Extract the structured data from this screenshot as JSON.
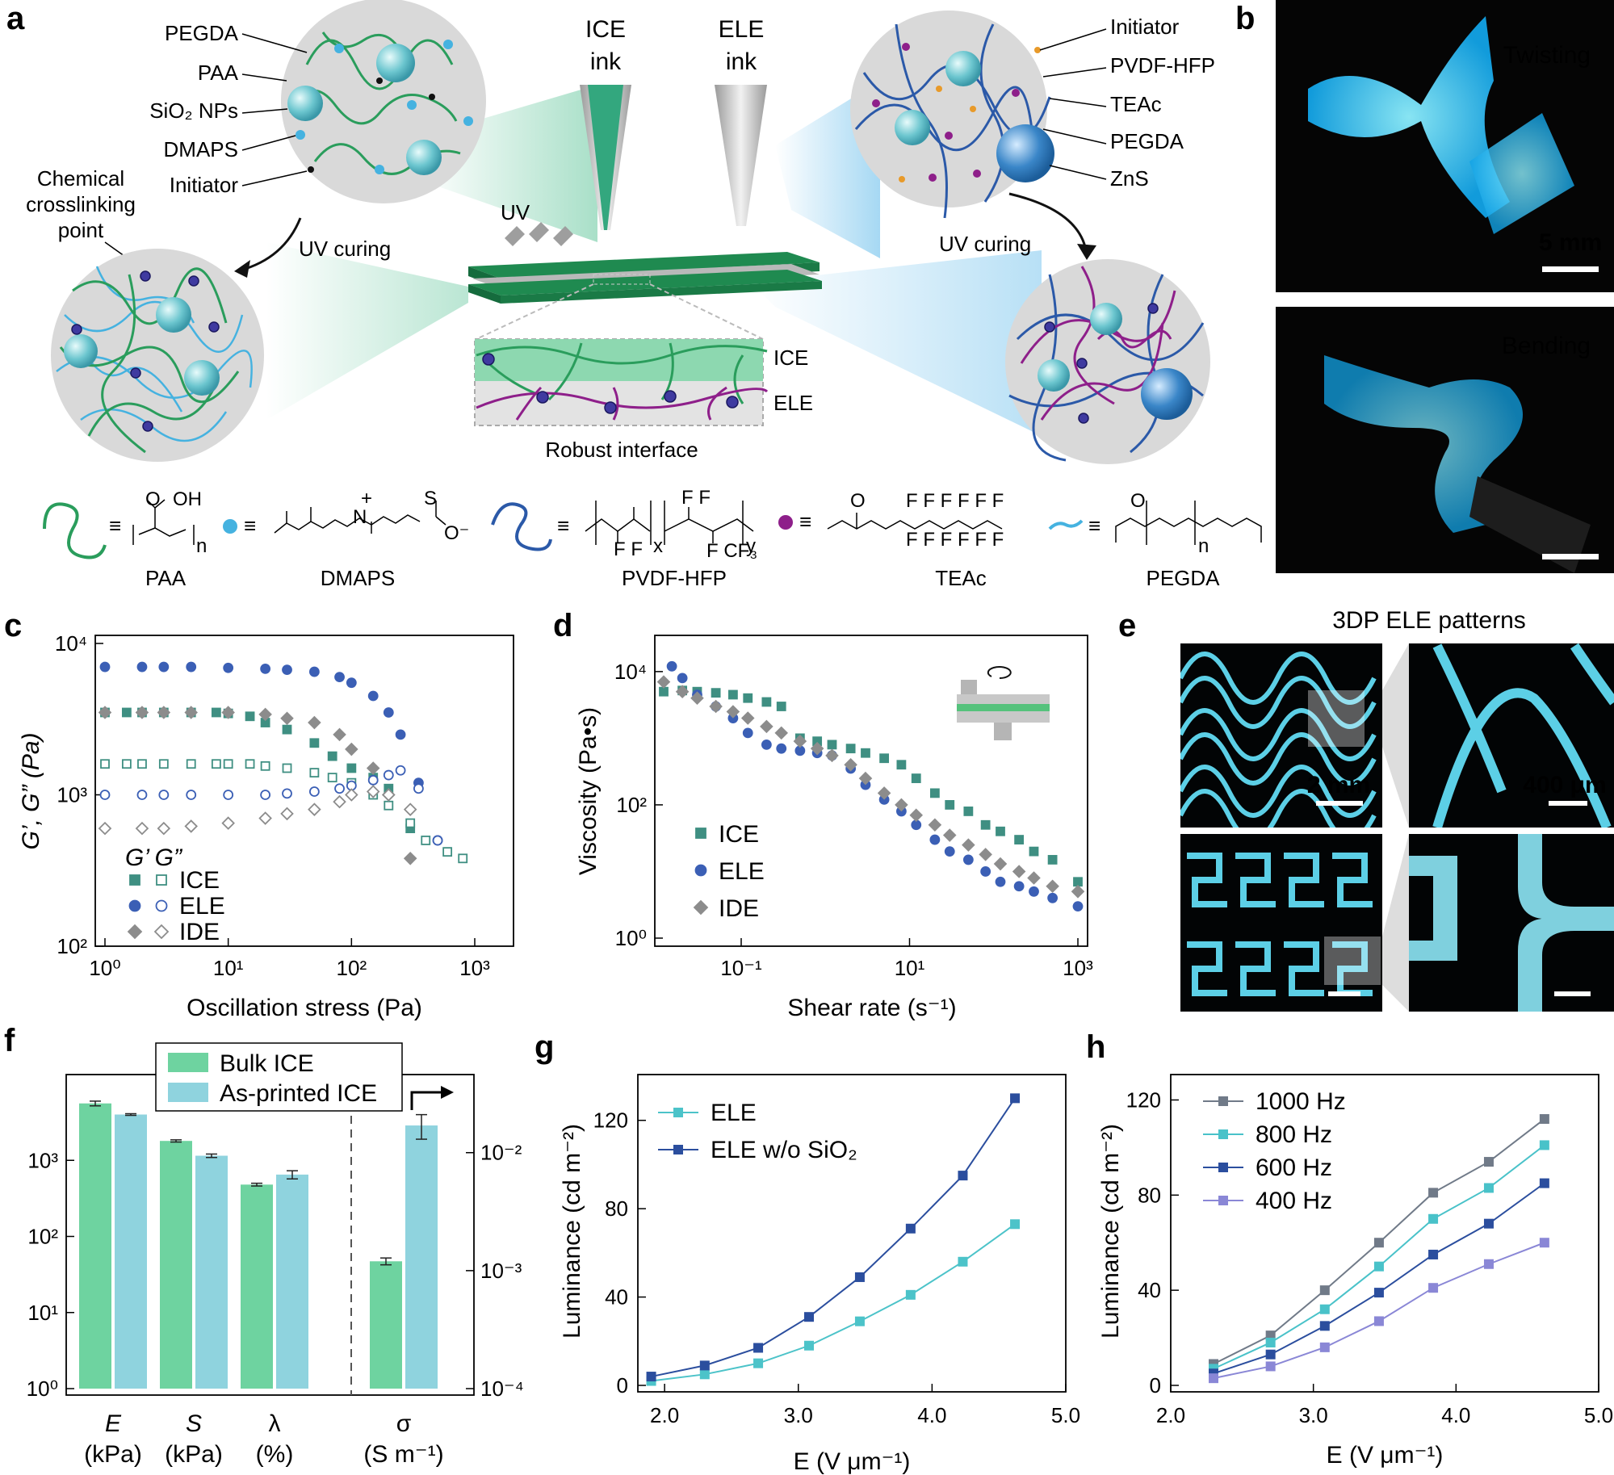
{
  "panels": [
    "a",
    "b",
    "c",
    "d",
    "e",
    "f",
    "g",
    "h"
  ],
  "a": {
    "ice_ink": [
      "ICE",
      "ink"
    ],
    "ele_ink": [
      "ELE",
      "ink"
    ],
    "ice_components": [
      "PEGDA",
      "PAA",
      "SiO₂ NPs",
      "DMAPS",
      "Initiator"
    ],
    "ele_components": [
      "Initiator",
      "PVDF-HFP",
      "TEAc",
      "PEGDA",
      "ZnS"
    ],
    "crosslink": [
      "Chemical",
      "crosslinking",
      "point"
    ],
    "uv": "UV",
    "uv_curing": "UV curing",
    "interface_ice": "ICE",
    "interface_ele": "ELE",
    "interface_caption": "Robust interface",
    "legend": [
      "PAA",
      "DMAPS",
      "PVDF-HFP",
      "TEAc",
      "PEGDA"
    ],
    "colors": {
      "green": "#2a9d5c",
      "blue": "#2b59a8",
      "cyan": "#45b2e0",
      "purple": "#8e1f8a",
      "orange": "#e89a2a",
      "gray": "#d9d9d9"
    }
  },
  "b": {
    "photo1_label": "Twisting",
    "photo1_scale": "5 mm",
    "photo2_label": "Bending",
    "glow": "#39c6ff"
  },
  "e": {
    "title": "3DP ELE patterns",
    "scale_1": "2 mm",
    "scale_2": "400 μm",
    "line": "#5ccfe6"
  },
  "chart_data": [
    {
      "panel": "c",
      "type": "scatter",
      "xlabel": "Oscillation stress (Pa)",
      "ylabel": "G’, G” (Pa)",
      "xlim": [
        1,
        1000
      ],
      "ylim": [
        100,
        10000
      ],
      "xscale": "log",
      "yscale": "log",
      "xticks": [
        "10⁰",
        "10¹",
        "10²",
        "10³"
      ],
      "yticks": [
        "10²",
        "10³",
        "10⁴"
      ],
      "legend_header": "G’  G”",
      "series": [
        {
          "name": "ICE",
          "kind": "G’",
          "color": "#3f8f82",
          "marker": "square-filled",
          "x": [
            1,
            1.5,
            2,
            3,
            5,
            8,
            10,
            15,
            20,
            30,
            50,
            70,
            100,
            150,
            200,
            300
          ],
          "y": [
            3500,
            3500,
            3500,
            3500,
            3500,
            3500,
            3450,
            3300,
            3000,
            2700,
            2200,
            1800,
            1500,
            1300,
            1100,
            600
          ]
        },
        {
          "name": "ICE",
          "kind": "G”",
          "color": "#3f8f82",
          "marker": "square-open",
          "x": [
            1,
            1.5,
            2,
            3,
            5,
            8,
            10,
            15,
            20,
            30,
            50,
            70,
            100,
            150,
            200,
            300,
            400,
            600,
            800
          ],
          "y": [
            1600,
            1600,
            1600,
            1600,
            1600,
            1600,
            1600,
            1600,
            1550,
            1500,
            1400,
            1300,
            1200,
            1000,
            850,
            650,
            500,
            420,
            380
          ]
        },
        {
          "name": "ELE",
          "kind": "G’",
          "color": "#3b5fb5",
          "marker": "circle-filled",
          "x": [
            1,
            2,
            3,
            5,
            10,
            20,
            30,
            50,
            80,
            100,
            150,
            200,
            250,
            350,
            500
          ],
          "y": [
            7000,
            7000,
            7000,
            7000,
            6900,
            6800,
            6700,
            6500,
            6000,
            5500,
            4500,
            3500,
            2500,
            1200,
            500
          ]
        },
        {
          "name": "ELE",
          "kind": "G”",
          "color": "#3b5fb5",
          "marker": "circle-open",
          "x": [
            1,
            2,
            3,
            5,
            10,
            20,
            30,
            50,
            80,
            100,
            150,
            200,
            250,
            350,
            500
          ],
          "y": [
            1000,
            1000,
            1000,
            1000,
            1000,
            1000,
            1020,
            1050,
            1100,
            1150,
            1250,
            1350,
            1450,
            1100,
            500
          ]
        },
        {
          "name": "IDE",
          "kind": "G’",
          "color": "#8c8c8c",
          "marker": "diamond-filled",
          "x": [
            1,
            2,
            3,
            5,
            10,
            20,
            30,
            50,
            80,
            100,
            150,
            200,
            300
          ],
          "y": [
            3500,
            3500,
            3500,
            3500,
            3500,
            3400,
            3200,
            3000,
            2500,
            2000,
            1500,
            1000,
            380
          ]
        },
        {
          "name": "IDE",
          "kind": "G”",
          "color": "#8c8c8c",
          "marker": "diamond-open",
          "x": [
            1,
            2,
            3,
            5,
            10,
            20,
            30,
            50,
            80,
            100,
            150,
            200,
            300
          ],
          "y": [
            600,
            600,
            600,
            620,
            650,
            700,
            750,
            800,
            900,
            1000,
            1050,
            1000,
            800
          ]
        }
      ]
    },
    {
      "panel": "d",
      "type": "scatter",
      "xlabel": "Shear rate (s⁻¹)",
      "ylabel": "Viscosity (Pa•s)",
      "xlim": [
        0.01,
        1000
      ],
      "ylim": [
        1,
        30000
      ],
      "xscale": "log",
      "yscale": "log",
      "xticks": [
        "10⁻¹",
        "10¹",
        "10³"
      ],
      "yticks": [
        "10⁰",
        "10²",
        "10⁴"
      ],
      "series": [
        {
          "name": "ICE",
          "color": "#3f8f82",
          "marker": "square-filled",
          "x": [
            0.012,
            0.02,
            0.03,
            0.05,
            0.08,
            0.12,
            0.2,
            0.3,
            0.5,
            0.8,
            1.2,
            2,
            3,
            5,
            8,
            12,
            20,
            30,
            50,
            80,
            120,
            200,
            300,
            500,
            1000
          ],
          "y": [
            5000,
            5200,
            5000,
            4800,
            4500,
            4000,
            3500,
            3000,
            1000,
            900,
            800,
            700,
            600,
            500,
            400,
            250,
            150,
            100,
            80,
            50,
            40,
            30,
            20,
            15,
            7
          ]
        },
        {
          "name": "ELE",
          "color": "#3b5fb5",
          "marker": "circle-filled",
          "x": [
            0.015,
            0.02,
            0.03,
            0.05,
            0.08,
            0.12,
            0.2,
            0.3,
            0.5,
            0.8,
            1.2,
            2,
            3,
            5,
            8,
            12,
            20,
            30,
            50,
            80,
            120,
            200,
            300,
            500,
            1000
          ],
          "y": [
            12000,
            8000,
            4500,
            3000,
            2000,
            1200,
            800,
            700,
            650,
            600,
            550,
            350,
            200,
            120,
            80,
            50,
            30,
            20,
            15,
            10,
            7,
            6,
            5,
            4,
            3
          ]
        },
        {
          "name": "IDE",
          "color": "#8c8c8c",
          "marker": "diamond-filled",
          "x": [
            0.012,
            0.02,
            0.03,
            0.05,
            0.08,
            0.12,
            0.2,
            0.3,
            0.5,
            0.8,
            1.2,
            2,
            3,
            5,
            8,
            12,
            20,
            30,
            50,
            80,
            120,
            200,
            300,
            500,
            1000
          ],
          "y": [
            7000,
            5000,
            4000,
            3000,
            2500,
            2000,
            1500,
            1200,
            900,
            700,
            550,
            400,
            250,
            150,
            100,
            70,
            50,
            35,
            25,
            18,
            13,
            10,
            8,
            6,
            5
          ]
        }
      ]
    },
    {
      "panel": "f",
      "type": "bar",
      "categories": [
        "E",
        "S",
        "λ",
        "σ"
      ],
      "category_units": [
        "(kPa)",
        "(kPa)",
        "(%)",
        "(S m⁻¹)"
      ],
      "ylim_left": [
        1,
        10000
      ],
      "yticks_left": [
        "10⁰",
        "10¹",
        "10²",
        "10³"
      ],
      "ylim_right": [
        0.0001,
        0.03
      ],
      "yticks_right": [
        "10⁻⁴",
        "10⁻³",
        "10⁻²"
      ],
      "series": [
        {
          "name": "Bulk ICE",
          "color": "#6ed3a0",
          "values": [
            5600,
            1800,
            480,
            0.0012
          ],
          "errors": [
            400,
            60,
            20,
            8e-05
          ]
        },
        {
          "name": "As-printed ICE",
          "color": "#8fd3de",
          "values": [
            4000,
            1150,
            650,
            0.017
          ],
          "errors": [
            100,
            60,
            80,
            0.004
          ]
        }
      ]
    },
    {
      "panel": "g",
      "type": "line",
      "xlabel": "E (V μm⁻¹)",
      "ylabel": "Luminance (cd m⁻²)",
      "xlim": [
        1.8,
        5.0
      ],
      "ylim": [
        0,
        140
      ],
      "xticks": [
        2.0,
        3.0,
        4.0,
        5.0
      ],
      "yticks": [
        0,
        40,
        80,
        120
      ],
      "series": [
        {
          "name": "ELE",
          "color": "#4cc3c9",
          "x": [
            1.9,
            2.3,
            2.7,
            3.08,
            3.46,
            3.84,
            4.23,
            4.62
          ],
          "y": [
            2,
            5,
            10,
            18,
            29,
            41,
            56,
            73
          ]
        },
        {
          "name": "ELE w/o SiO₂",
          "color": "#2b4e9e",
          "x": [
            1.9,
            2.3,
            2.7,
            3.08,
            3.46,
            3.84,
            4.23,
            4.62
          ],
          "y": [
            4,
            9,
            17,
            31,
            49,
            71,
            95,
            130
          ]
        }
      ]
    },
    {
      "panel": "h",
      "type": "line",
      "xlabel": "E (V μm⁻¹)",
      "ylabel": "Luminance (cd m⁻²)",
      "xlim": [
        2.0,
        5.0
      ],
      "ylim": [
        0,
        130
      ],
      "xticks": [
        2.0,
        3.0,
        4.0,
        5.0
      ],
      "yticks": [
        0,
        40,
        80,
        120
      ],
      "series": [
        {
          "name": "1000 Hz",
          "color": "#707a88",
          "x": [
            2.3,
            2.7,
            3.08,
            3.46,
            3.84,
            4.23,
            4.62
          ],
          "y": [
            9,
            21,
            40,
            60,
            81,
            94,
            112
          ]
        },
        {
          "name": "800 Hz",
          "color": "#49c2c9",
          "x": [
            2.3,
            2.7,
            3.08,
            3.46,
            3.84,
            4.23,
            4.62
          ],
          "y": [
            7,
            18,
            32,
            50,
            70,
            83,
            101
          ]
        },
        {
          "name": "600 Hz",
          "color": "#2b4e9e",
          "x": [
            2.3,
            2.7,
            3.08,
            3.46,
            3.84,
            4.23,
            4.62
          ],
          "y": [
            5,
            13,
            25,
            39,
            55,
            68,
            85
          ]
        },
        {
          "name": "400 Hz",
          "color": "#8a87d6",
          "x": [
            2.3,
            2.7,
            3.08,
            3.46,
            3.84,
            4.23,
            4.62
          ],
          "y": [
            3,
            8,
            16,
            27,
            41,
            51,
            60
          ]
        }
      ]
    }
  ]
}
